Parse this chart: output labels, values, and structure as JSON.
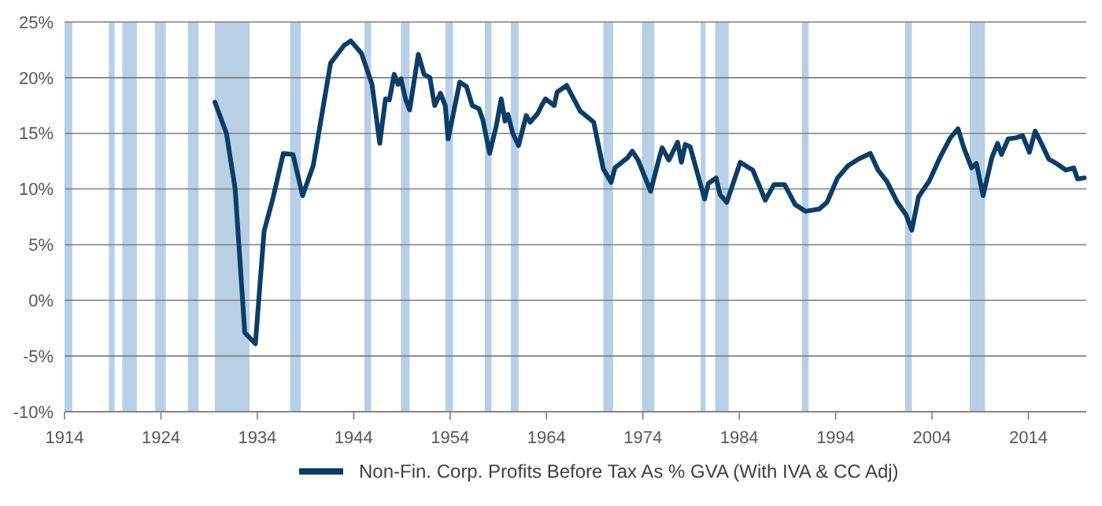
{
  "chart_data": {
    "type": "line",
    "xlim": [
      1914,
      2020
    ],
    "xticks": [
      1914,
      1924,
      1934,
      1944,
      1954,
      1964,
      1974,
      1984,
      1994,
      2004,
      2014
    ],
    "ylim": [
      -10,
      25
    ],
    "yticks": [
      {
        "value": -10,
        "label": "-10%"
      },
      {
        "value": -5,
        "label": "-5%"
      },
      {
        "value": 0,
        "label": "0%"
      },
      {
        "value": 5,
        "label": "5%"
      },
      {
        "value": 10,
        "label": "10%"
      },
      {
        "value": 15,
        "label": "15%"
      },
      {
        "value": 20,
        "label": "20%"
      },
      {
        "value": 25,
        "label": "25%"
      }
    ],
    "grid": "y",
    "legend": "bottom",
    "bands": [
      {
        "axis": "x",
        "from": 1914.0,
        "to": 1914.8,
        "color": "#b8cfe6"
      },
      {
        "axis": "x",
        "from": 1918.6,
        "to": 1919.2,
        "color": "#b8cfe6"
      },
      {
        "axis": "x",
        "from": 1920.0,
        "to": 1921.5,
        "color": "#b8cfe6"
      },
      {
        "axis": "x",
        "from": 1923.4,
        "to": 1924.5,
        "color": "#b8cfe6"
      },
      {
        "axis": "x",
        "from": 1926.8,
        "to": 1927.9,
        "color": "#b8cfe6"
      },
      {
        "axis": "x",
        "from": 1929.6,
        "to": 1933.2,
        "color": "#b8cfe6"
      },
      {
        "axis": "x",
        "from": 1937.4,
        "to": 1938.5,
        "color": "#b8cfe6"
      },
      {
        "axis": "x",
        "from": 1945.1,
        "to": 1945.8,
        "color": "#b8cfe6"
      },
      {
        "axis": "x",
        "from": 1948.9,
        "to": 1949.8,
        "color": "#b8cfe6"
      },
      {
        "axis": "x",
        "from": 1953.5,
        "to": 1954.3,
        "color": "#b8cfe6"
      },
      {
        "axis": "x",
        "from": 1957.6,
        "to": 1958.3,
        "color": "#b8cfe6"
      },
      {
        "axis": "x",
        "from": 1960.3,
        "to": 1961.1,
        "color": "#b8cfe6"
      },
      {
        "axis": "x",
        "from": 1969.9,
        "to": 1970.9,
        "color": "#b8cfe6"
      },
      {
        "axis": "x",
        "from": 1973.9,
        "to": 1975.2,
        "color": "#b8cfe6"
      },
      {
        "axis": "x",
        "from": 1980.0,
        "to": 1980.5,
        "color": "#b8cfe6"
      },
      {
        "axis": "x",
        "from": 1981.5,
        "to": 1982.9,
        "color": "#b8cfe6"
      },
      {
        "axis": "x",
        "from": 1990.5,
        "to": 1991.2,
        "color": "#b8cfe6"
      },
      {
        "axis": "x",
        "from": 2001.2,
        "to": 2001.9,
        "color": "#b8cfe6"
      },
      {
        "axis": "x",
        "from": 2007.9,
        "to": 2009.5,
        "color": "#b8cfe6"
      }
    ],
    "series": [
      {
        "name": "Non-Fin. Corp. Profits Before Tax As % GVA (With IVA & CC Adj)",
        "color": "#0d3d66",
        "x": [
          1929.6,
          1930.8,
          1931.7,
          1932.7,
          1933.8,
          1934.7,
          1935.6,
          1936.7,
          1937.7,
          1938.7,
          1939.8,
          1941.6,
          1943.0,
          1943.7,
          1944.8,
          1945.9,
          1946.7,
          1947.3,
          1947.7,
          1948.2,
          1948.6,
          1948.9,
          1949.4,
          1949.8,
          1950.7,
          1951.3,
          1951.9,
          1952.4,
          1953.0,
          1953.5,
          1953.8,
          1955.0,
          1955.7,
          1956.3,
          1957.0,
          1957.4,
          1958.1,
          1958.8,
          1959.3,
          1959.7,
          1960.0,
          1960.5,
          1961.1,
          1961.9,
          1962.3,
          1963.1,
          1963.5,
          1963.9,
          1964.8,
          1965.1,
          1966.1,
          1967.5,
          1968.9,
          1969.9,
          1970.7,
          1971.1,
          1972.4,
          1972.9,
          1973.5,
          1974.8,
          1975.7,
          1976.0,
          1976.7,
          1977.6,
          1978.0,
          1978.4,
          1978.9,
          1980.4,
          1980.8,
          1981.6,
          1982.0,
          1982.7,
          1984.1,
          1985.4,
          1986.7,
          1987.6,
          1988.7,
          1989.8,
          1990.9,
          1992.3,
          1993.1,
          1994.2,
          1995.3,
          1996.4,
          1997.6,
          1998.4,
          1999.3,
          2000.4,
          2001.3,
          2001.9,
          2002.6,
          2003.7,
          2004.8,
          2005.9,
          2006.7,
          2007.3,
          2008.1,
          2008.6,
          2009.3,
          2010.2,
          2010.8,
          2011.2,
          2011.9,
          2012.7,
          2013.4,
          2014.1,
          2014.7,
          2015.4,
          2016.1,
          2016.9,
          2017.9,
          2018.7,
          2019.1,
          2019.8
        ],
        "values": [
          17.8,
          15.0,
          10.0,
          -2.9,
          -3.9,
          6.2,
          9.1,
          13.2,
          13.1,
          9.4,
          12.1,
          21.3,
          22.9,
          23.3,
          22.2,
          19.4,
          14.1,
          18.1,
          18.0,
          20.3,
          19.4,
          19.9,
          18.0,
          17.1,
          22.1,
          20.3,
          20.0,
          17.5,
          18.6,
          17.5,
          14.5,
          19.6,
          19.2,
          17.5,
          17.2,
          16.2,
          13.2,
          15.7,
          18.1,
          16.1,
          16.7,
          15.0,
          13.9,
          16.6,
          16.0,
          16.8,
          17.5,
          18.1,
          17.5,
          18.7,
          19.3,
          17.0,
          16.0,
          11.8,
          10.6,
          11.9,
          12.8,
          13.4,
          12.6,
          9.8,
          12.8,
          13.7,
          12.6,
          14.2,
          12.4,
          14.0,
          13.8,
          9.1,
          10.5,
          11.0,
          9.5,
          8.8,
          12.4,
          11.7,
          9.0,
          10.4,
          10.4,
          8.6,
          8.0,
          8.2,
          8.8,
          11.0,
          12.1,
          12.7,
          13.2,
          11.7,
          10.7,
          8.8,
          7.7,
          6.3,
          9.3,
          10.7,
          12.8,
          14.6,
          15.4,
          13.7,
          11.9,
          12.3,
          9.4,
          12.8,
          14.1,
          13.1,
          14.5,
          14.6,
          14.8,
          13.3,
          15.2,
          14.0,
          12.7,
          12.3,
          11.7,
          11.9,
          10.9,
          11.0
        ]
      }
    ]
  }
}
